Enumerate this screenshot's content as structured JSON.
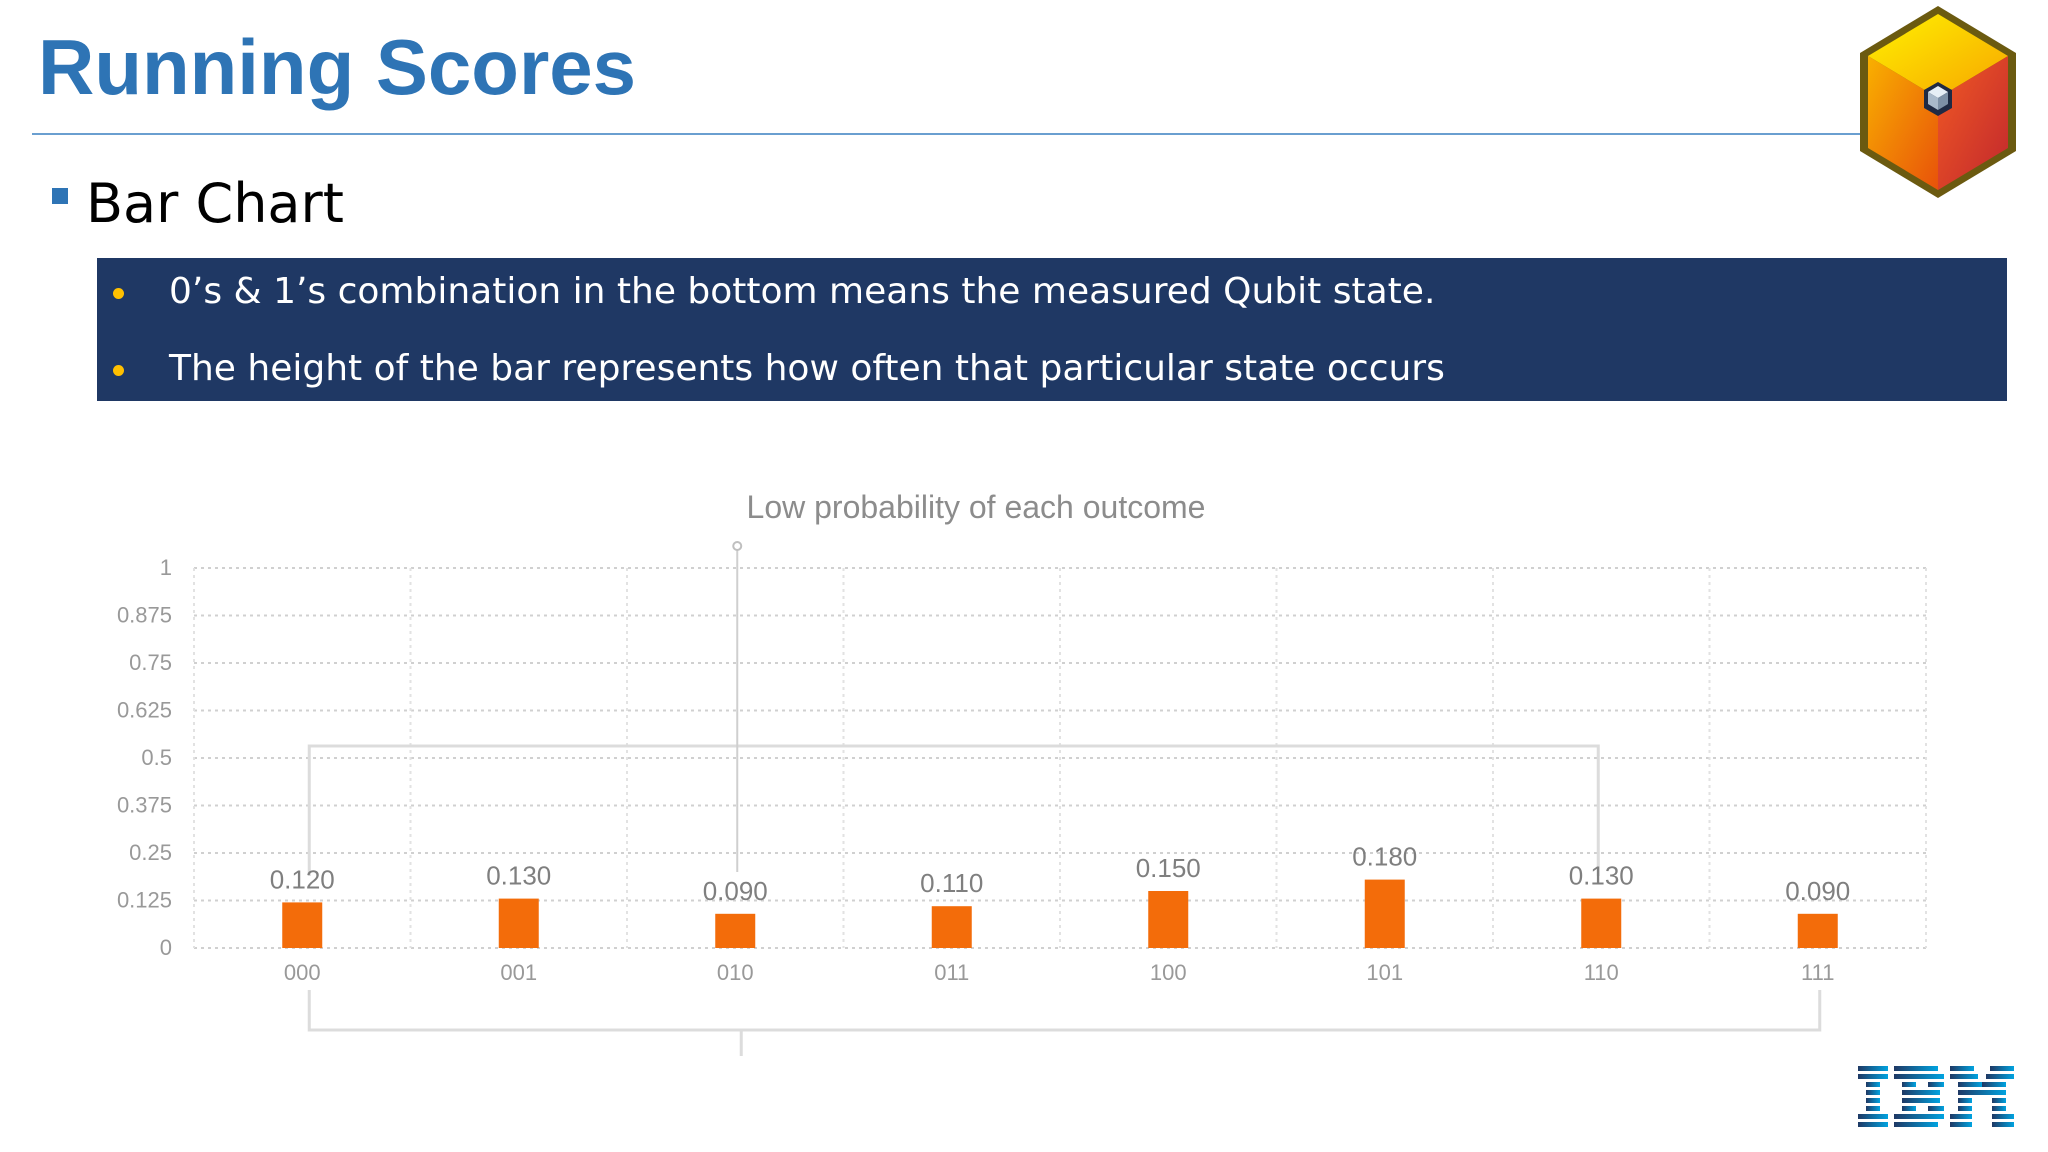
{
  "slide": {
    "title": "Running Scores",
    "subheading": "Bar Chart",
    "bullets": [
      "0’s & 1’s combination in the bottom means the measured Qubit state.",
      "The height of the bar represents how often that particular state occurs"
    ],
    "brand_logo": "IBM"
  },
  "colors": {
    "title": "#2e74b5",
    "banner": "#1f3864",
    "bullet": "#ffc000",
    "bar": "#f36c0a",
    "axis_text": "#999999"
  },
  "chart_data": {
    "type": "bar",
    "title": "Low probability of each outcome",
    "categories": [
      "000",
      "001",
      "010",
      "011",
      "100",
      "101",
      "110",
      "111"
    ],
    "values": [
      0.12,
      0.13,
      0.09,
      0.11,
      0.15,
      0.18,
      0.13,
      0.09
    ],
    "value_labels": [
      "0.120",
      "0.130",
      "0.090",
      "0.110",
      "0.150",
      "0.180",
      "0.130",
      "0.090"
    ],
    "yticks": [
      "0",
      "0.125",
      "0.25",
      "0.375",
      "0.5",
      "0.625",
      "0.75",
      "0.875",
      "1"
    ],
    "ylim": [
      0,
      1
    ],
    "xlabel": "",
    "ylabel": "",
    "grid": true,
    "legend": "none"
  }
}
